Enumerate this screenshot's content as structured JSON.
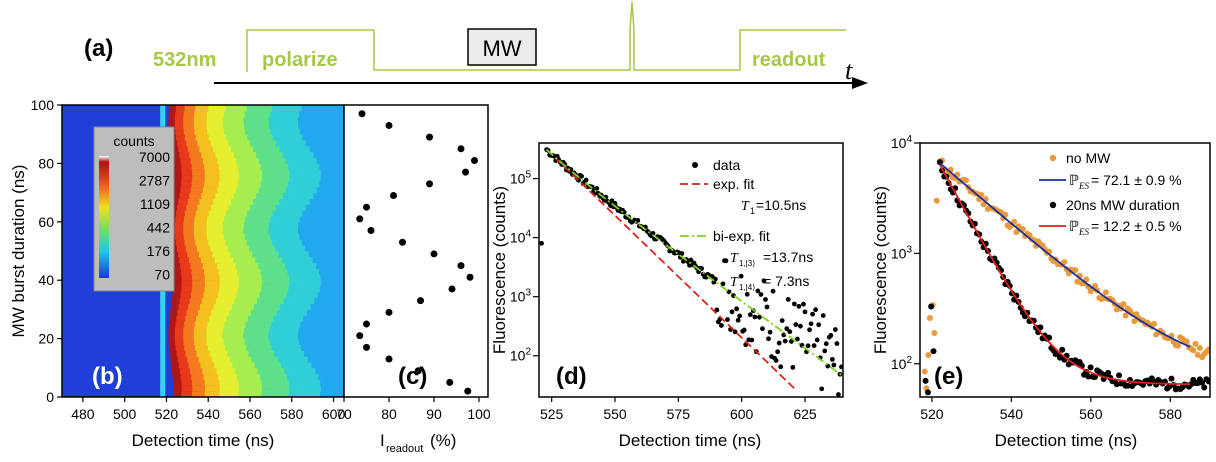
{
  "colors": {
    "laser": "#a6c84a",
    "axis": "#000000",
    "data_dots": "#000000",
    "fit_red": "#e0201a",
    "fit_green": "#7ed321",
    "fit_blue": "#1e2f9a",
    "no_mw_dots": "#e89a3c",
    "heatmap_bg": "#1f3fd8",
    "legend_box": "#bdbdbd"
  },
  "panel_a": {
    "label": "(a)",
    "laser_label": "532nm",
    "polarize_label": "polarize",
    "mw_label": "MW",
    "readout_label": "readout",
    "time_label": "t"
  },
  "chart_data": [
    {
      "panel": "(b)",
      "type": "heatmap",
      "xlabel": "Detection time (ns)",
      "ylabel": "MW burst duration (ns)",
      "xlim": [
        470,
        605
      ],
      "ylim": [
        0,
        100
      ],
      "xticks": [
        480,
        500,
        520,
        540,
        560,
        580,
        600
      ],
      "yticks": [
        0,
        20,
        40,
        60,
        80,
        100
      ],
      "colorbar_title": "counts",
      "colorbar_ticks": [
        "7000",
        "2787",
        "1109",
        "442",
        "176",
        "70"
      ]
    },
    {
      "panel": "(c)",
      "type": "scatter",
      "xlabel": "I",
      "xlabel_sub": "readout",
      "xlabel_unit": "(%)",
      "xlim": [
        70,
        102
      ],
      "ylim": [
        0,
        100
      ],
      "xticks": [
        70,
        80,
        90,
        100
      ],
      "y": [
        2,
        5,
        9,
        13,
        17,
        21,
        25,
        29,
        33,
        37,
        41,
        45,
        49,
        53,
        57,
        61,
        65,
        69,
        73,
        77,
        81,
        85,
        89,
        93,
        97
      ],
      "x": [
        97.5,
        93.5,
        86.5,
        80,
        75,
        73.5,
        75,
        80,
        87,
        94,
        98,
        96,
        90,
        83,
        76,
        73.5,
        75,
        81,
        89,
        97,
        99,
        96,
        89,
        80,
        74
      ]
    },
    {
      "panel": "(d)",
      "type": "line",
      "xlabel": "Detection time (ns)",
      "ylabel": "Fluorescence (counts)",
      "yscale": "log",
      "xlim": [
        520,
        640
      ],
      "ylim": [
        20,
        400000
      ],
      "xticks": [
        525,
        550,
        575,
        600,
        625
      ],
      "ytick_labels": [
        "10^2",
        "10^3",
        "10^4",
        "10^5"
      ],
      "yticks": [
        100,
        1000,
        10000,
        100000
      ],
      "legend": {
        "data": "data",
        "exp": "exp. fit",
        "exp_param": "T",
        "exp_param_sub": "1",
        "exp_value": "=10.5ns",
        "biexp": "bi-exp. fit",
        "biexp_param1": "T",
        "biexp_param1_sub": "1,|3⟩",
        "biexp_value1": "=13.7ns",
        "biexp_param2": "T",
        "biexp_param2_sub": "1,|4⟩",
        "biexp_value2": "=  7.3ns"
      },
      "series": [
        {
          "name": "data",
          "x": [
            521,
            523,
            526,
            530,
            535,
            540,
            545,
            550,
            555,
            560,
            565,
            570,
            575,
            580,
            585,
            590,
            595,
            600,
            605,
            610,
            615,
            620,
            625,
            630,
            635
          ],
          "y": [
            8000,
            300000,
            220000,
            150000,
            90000,
            55000,
            33000,
            20000,
            12000,
            7500,
            4800,
            3000,
            2000,
            1300,
            850,
            560,
            380,
            250,
            170,
            120,
            85,
            60,
            45,
            35,
            25
          ]
        },
        {
          "name": "exp. fit",
          "tau": 10.5,
          "x0": 523,
          "y0": 310000,
          "x": [
            523,
            621
          ]
        },
        {
          "name": "bi-exp. fit",
          "x0": 523,
          "a1": 230000,
          "tau1": 13.7,
          "a2": 80000,
          "tau2": 7.3,
          "x": [
            523,
            640
          ]
        }
      ]
    },
    {
      "panel": "(e)",
      "type": "line",
      "xlabel": "Detection time (ns)",
      "ylabel": "Fluorescence (counts)",
      "yscale": "log",
      "xlim": [
        517,
        590
      ],
      "ylim": [
        50,
        10000
      ],
      "xticks": [
        520,
        540,
        560,
        580
      ],
      "ytick_labels": [
        "10^2",
        "10^3",
        "10^4"
      ],
      "yticks": [
        100,
        1000,
        10000
      ],
      "legend": {
        "no_mw": "no MW",
        "no_mw_fit_symbol": "ℙ",
        "no_mw_fit_sub": "ES",
        "no_mw_fit_value": " = 72.1 ± 0.9 %",
        "mw": "20ns MW duration",
        "mw_fit_symbol": "ℙ",
        "mw_fit_sub": "ES",
        "mw_fit_value": " = 12.2 ± 0.5 %"
      },
      "series": [
        {
          "name": "no MW",
          "x0": 522,
          "a": 6500,
          "tau": 14,
          "floor": 70
        },
        {
          "name": "20ns MW duration",
          "x0": 522,
          "a": 6300,
          "tau": 6.5,
          "floor": 65
        }
      ]
    }
  ]
}
